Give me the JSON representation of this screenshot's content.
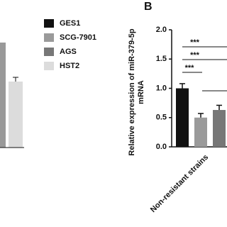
{
  "chart_data": {
    "type": "bar",
    "panel_label": "B",
    "ylabel_lines": [
      "Relative expression of miR-379-5p",
      "mRNA"
    ],
    "categories": [
      "Non-resistant strains"
    ],
    "series": [
      {
        "name": "GES1",
        "color": "#111111",
        "values": [
          1.0
        ],
        "errors": [
          0.08
        ]
      },
      {
        "name": "SCG-7901",
        "color": "#9a9a9a",
        "values": [
          0.5
        ],
        "errors": [
          0.07
        ]
      },
      {
        "name": "AGS",
        "color": "#777777",
        "values": [
          0.63
        ],
        "errors": [
          0.08
        ]
      },
      {
        "name": "HST2",
        "color": "#dcdcdc",
        "values": [
          null
        ],
        "errors": [
          null
        ]
      }
    ],
    "annotations": [
      "***",
      "***",
      "***"
    ],
    "ylim": [
      0,
      2.0
    ],
    "yticks": [
      {
        "value": 0,
        "label": "0.0"
      },
      {
        "value": 0.5,
        "label": "0.5"
      },
      {
        "value": 1.0,
        "label": "1.0"
      },
      {
        "value": 1.5,
        "label": "1.5"
      },
      {
        "value": 2.0,
        "label": "2.0"
      }
    ]
  }
}
